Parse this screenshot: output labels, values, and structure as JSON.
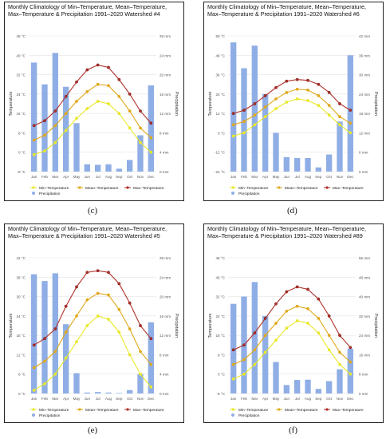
{
  "figure": {
    "panels": [
      {
        "id": "c",
        "caption": "(c)",
        "title": "Monthly Climatology of Min–Temperature, Mean–Temperature, Max–Temperature & Precipitation 1991–2020 Watershed #4"
      },
      {
        "id": "d",
        "caption": "(d)",
        "title": "Monthly Climatology of Min–Temperature, Mean–Temperature, Max–Temperature & Precipitation 1991–2020 Watershed #6"
      },
      {
        "id": "e",
        "caption": "(e)",
        "title": "Monthly Climatology of Min–Temperature, Mean–Temperature, Max–Temperature & Precipitation 1991–2020 Watershed #5"
      },
      {
        "id": "f",
        "caption": "(f)",
        "title": "Monthly Climatology of Min–Temperature, Mean–Temperature, Max–Temperature & Precipitation 1991–2020 Watershed #89"
      }
    ]
  },
  "colors": {
    "min": "#e8e82a",
    "mean": "#e0a81a",
    "max": "#b0302a",
    "precip": "#8faee6",
    "grid": "#e3e3e3",
    "axis_text": "#555555"
  },
  "chart_data": [
    {
      "type": "bar",
      "title": "Monthly Climatology of Min–Temperature, Mean–Temperature, Max–Temperature & Precipitation 1991–2020 Watershed #4",
      "categories": [
        "Jan",
        "Feb",
        "Mar",
        "Apr",
        "May",
        "Jun",
        "Jul",
        "Aug",
        "Sep",
        "Oct",
        "Nov",
        "Dec"
      ],
      "ylabel": "Temperature",
      "y2label": "Precipitation",
      "ylim": [
        -8,
        48
      ],
      "y2lim": [
        0,
        28
      ],
      "yticks": [
        "48 °C",
        "40 °C",
        "32 °C",
        "24 °C",
        "16 °C",
        "8 °C",
        "0 °C",
        "-8 °C"
      ],
      "y2ticks": [
        "28 mm",
        "24 mm",
        "20 mm",
        "16 mm",
        "12 mm",
        "8 mm",
        "4 mm",
        "0 mm"
      ],
      "series": [
        {
          "name": "Min–Temperature",
          "kind": "line",
          "values": [
            -1,
            0.5,
            4,
            9,
            14,
            18,
            21,
            20,
            16,
            10,
            4,
            0
          ]
        },
        {
          "name": "Mean–Temperature",
          "kind": "line",
          "values": [
            5,
            7,
            11,
            16,
            21,
            25,
            28,
            27.5,
            23,
            17,
            10,
            6
          ]
        },
        {
          "name": "Max–Temperature",
          "kind": "line",
          "values": [
            11,
            13,
            17,
            23,
            29,
            34,
            36,
            35,
            30,
            24,
            17,
            12
          ]
        },
        {
          "name": "Precipitation",
          "kind": "bar",
          "axis": "right",
          "values": [
            22.5,
            18,
            24.5,
            17.5,
            10,
            1.5,
            1.4,
            1.5,
            0.6,
            2.4,
            7.5,
            17.8
          ]
        }
      ],
      "legend": "bottom"
    },
    {
      "type": "bar",
      "title": "Monthly Climatology of Min–Temperature, Mean–Temperature, Max–Temperature & Precipitation 1991–2020 Watershed #6",
      "categories": [
        "Jan",
        "Feb",
        "Mar",
        "Apr",
        "May",
        "Jun",
        "Jul",
        "Aug",
        "Sep",
        "Oct",
        "Nov",
        "Dec"
      ],
      "ylabel": "Temperature",
      "y2label": "Precipitation",
      "ylim": [
        -24,
        60
      ],
      "y2lim": [
        0,
        42
      ],
      "yticks": [
        "60 °C",
        "48 °C",
        "36 °C",
        "24 °C",
        "12 °C",
        "0 °C",
        "-12 °C",
        "-24 °C"
      ],
      "y2ticks": [
        "42 mm",
        "36 mm",
        "30 mm",
        "24 mm",
        "18 mm",
        "12 mm",
        "6 mm",
        "0 mm"
      ],
      "series": [
        {
          "name": "Min–Temperature",
          "kind": "line",
          "values": [
            -2,
            0,
            5,
            10,
            15,
            19,
            21,
            20,
            17,
            11,
            5,
            0
          ]
        },
        {
          "name": "Mean–Temperature",
          "kind": "line",
          "values": [
            5,
            7,
            11,
            16,
            21,
            25,
            27,
            26.5,
            23,
            17,
            10,
            6
          ]
        },
        {
          "name": "Max–Temperature",
          "kind": "line",
          "values": [
            12,
            14,
            18,
            23,
            28,
            32,
            33,
            32.5,
            30,
            25,
            18,
            14
          ]
        },
        {
          "name": "Precipitation",
          "kind": "bar",
          "axis": "right",
          "values": [
            40,
            32,
            39,
            24,
            12,
            4.5,
            4.2,
            4.2,
            1.3,
            5.3,
            15.5,
            36
          ]
        }
      ],
      "legend": "bottom"
    },
    {
      "type": "bar",
      "title": "Monthly Climatology of Min–Temperature, Mean–Temperature, Max–Temperature & Precipitation 1991–2020 Watershed #5",
      "categories": [
        "Jan",
        "Feb",
        "Mar",
        "Apr",
        "May",
        "Jun",
        "Jul",
        "Aug",
        "Sep",
        "Oct",
        "Nov",
        "Dec"
      ],
      "ylabel": "Temperature",
      "y2label": "Precipitation",
      "ylim": [
        0,
        42
      ],
      "y2lim": [
        0,
        28
      ],
      "yticks": [
        "42 °C",
        "36 °C",
        "30 °C",
        "24 °C",
        "18 °C",
        "12 °C",
        "6 °C",
        "0 °C"
      ],
      "y2ticks": [
        "28 mm",
        "24 mm",
        "20 mm",
        "16 mm",
        "12 mm",
        "8 mm",
        "4 mm",
        "0 mm"
      ],
      "series": [
        {
          "name": "Min–Temperature",
          "kind": "line",
          "values": [
            1,
            3,
            6,
            11,
            16,
            21,
            24,
            23,
            19,
            12,
            6,
            2
          ]
        },
        {
          "name": "Mean–Temperature",
          "kind": "line",
          "values": [
            8,
            10,
            13,
            19,
            24,
            29,
            31,
            30.5,
            26,
            20,
            13,
            9
          ]
        },
        {
          "name": "Max–Temperature",
          "kind": "line",
          "values": [
            15,
            17,
            20,
            27,
            33,
            37.5,
            38,
            37.5,
            34,
            28,
            21,
            17
          ]
        },
        {
          "name": "Precipitation",
          "kind": "bar",
          "axis": "right",
          "values": [
            24.6,
            23.2,
            24.8,
            14.3,
            4.2,
            0.2,
            0.3,
            0.2,
            0.1,
            0.7,
            4,
            14.7
          ]
        }
      ],
      "legend": "bottom"
    },
    {
      "type": "bar",
      "title": "Monthly Climatology of Min–Temperature, Mean–Temperature, Max–Temperature & Precipitation 1991–2020 Watershed #89",
      "categories": [
        "Jan",
        "Feb",
        "Mar",
        "Apr",
        "May",
        "Jun",
        "Jul",
        "Aug",
        "Sep",
        "Oct",
        "Nov",
        "Dec"
      ],
      "ylabel": "Temperature",
      "y2label": "Precipitation",
      "ylim": [
        -8,
        48
      ],
      "y2lim": [
        0,
        56
      ],
      "yticks": [
        "48 °C",
        "40 °C",
        "32 °C",
        "24 °C",
        "16 °C",
        "8 °C",
        "0 °C",
        "-8 °C"
      ],
      "y2ticks": [
        "56 mm",
        "48 mm",
        "40 mm",
        "32 mm",
        "24 mm",
        "16 mm",
        "8 mm",
        "0 mm"
      ],
      "series": [
        {
          "name": "Min–Temperature",
          "kind": "line",
          "values": [
            -2,
            0,
            4,
            9,
            14,
            19,
            22,
            21,
            17,
            10,
            4,
            0
          ]
        },
        {
          "name": "Mean–Temperature",
          "kind": "line",
          "values": [
            4,
            6,
            10,
            16,
            21,
            26,
            28,
            27,
            23,
            16,
            9,
            5
          ]
        },
        {
          "name": "Max–Temperature",
          "kind": "line",
          "values": [
            10,
            12,
            17,
            23,
            29,
            34,
            36,
            35,
            31,
            24,
            16,
            11
          ]
        },
        {
          "name": "Precipitation",
          "kind": "bar",
          "axis": "right",
          "values": [
            37,
            40,
            46,
            32,
            13,
            3.5,
            5.6,
            5.7,
            1.9,
            5.1,
            10,
            18.5
          ]
        }
      ],
      "legend": "bottom"
    }
  ]
}
